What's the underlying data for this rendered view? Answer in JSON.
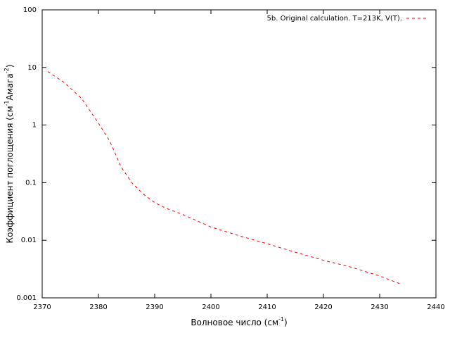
{
  "chart_data": {
    "type": "line",
    "xlabel": [
      "Волновое число (см",
      "-1",
      ")"
    ],
    "ylabel": [
      "Коэффициент поглощения (см",
      "-1",
      "Амага",
      "-2",
      ")"
    ],
    "x": [
      2371,
      2374,
      2377,
      2380,
      2382,
      2384,
      2386,
      2388,
      2390,
      2392,
      2395,
      2400,
      2405,
      2410,
      2415,
      2420,
      2425,
      2430,
      2434
    ],
    "series": [
      {
        "name": "5b. Original calculation. T=213K, V(T).",
        "color": "#ff0000",
        "values": [
          8.5,
          5.4,
          2.9,
          1.08,
          0.53,
          0.19,
          0.098,
          0.063,
          0.045,
          0.036,
          0.028,
          0.017,
          0.012,
          0.0087,
          0.0062,
          0.0045,
          0.0034,
          0.0024,
          0.0017
        ]
      }
    ],
    "xlim": [
      2370,
      2440
    ],
    "xticks": [
      2370,
      2380,
      2390,
      2400,
      2410,
      2420,
      2430,
      2440
    ],
    "ylim": [
      0.001,
      100
    ],
    "yticks": [
      0.001,
      0.01,
      0.1,
      1,
      10,
      100
    ],
    "ylog": true,
    "dashed": true,
    "legend": "top-right"
  }
}
